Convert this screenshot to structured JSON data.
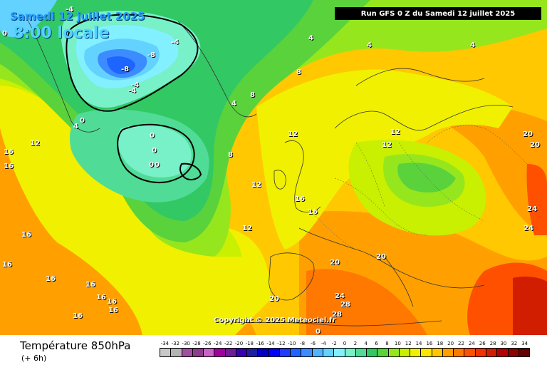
{
  "header": {
    "date": "Samedi 12 juillet 2025",
    "time": "8:00 locale",
    "run": "Run GFS 0 Z du Samedi 12 juillet 2025"
  },
  "footer": {
    "title": "Température 850hPa",
    "step": "(+ 6h)",
    "copyright": "Copyright © 2025 Meteociel.fr"
  },
  "legend": {
    "ticks": [
      "-34",
      "-32",
      "-30",
      "-28",
      "-26",
      "-24",
      "-22",
      "-20",
      "-18",
      "-16",
      "-14",
      "-12",
      "-10",
      "-8",
      "-6",
      "-4",
      "-2",
      "0",
      "2",
      "4",
      "6",
      "8",
      "10",
      "12",
      "14",
      "16",
      "18",
      "20",
      "22",
      "24",
      "26",
      "28",
      "30",
      "32",
      "34"
    ],
    "colors": [
      "#c8c8c8",
      "#b4b4b4",
      "#a050a0",
      "#8c3c8c",
      "#c864c8",
      "#a000a0",
      "#6e1e96",
      "#3c00b4",
      "#1e1ea0",
      "#0000c8",
      "#0000ff",
      "#1e3cff",
      "#1e64ff",
      "#3c8cff",
      "#50b4ff",
      "#64d2ff",
      "#82f0ff",
      "#78f0c8",
      "#50dc96",
      "#32c864",
      "#5ad23c",
      "#96e61e",
      "#c8f000",
      "#f0f000",
      "#ffe600",
      "#ffc800",
      "#ffa000",
      "#ff7800",
      "#ff5000",
      "#f03200",
      "#d21e00",
      "#b40000",
      "#8c0000",
      "#640000"
    ]
  },
  "isotherm_labels": [
    "-4",
    "0",
    "-4",
    "4",
    "-8",
    "-8",
    "-4",
    "-4",
    "0",
    "4",
    "4",
    "4",
    "4",
    "8",
    "8",
    "8",
    "12",
    "12",
    "12",
    "12",
    "12",
    "12",
    "16",
    "16",
    "16",
    "16",
    "16",
    "16",
    "16",
    "16",
    "16",
    "16",
    "16",
    "16",
    "20",
    "20",
    "20",
    "20",
    "20",
    "24",
    "24",
    "24",
    "28",
    "28",
    "0",
    "0",
    "0",
    "0",
    "0"
  ]
}
